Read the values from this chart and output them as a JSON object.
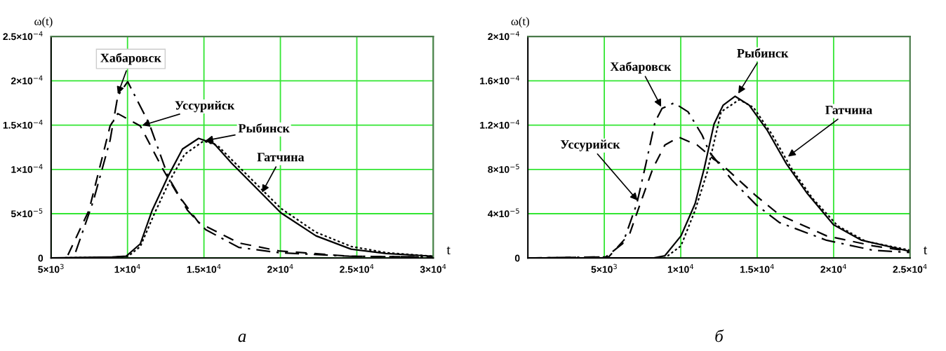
{
  "chart_data": [
    {
      "type": "line",
      "xlabel": "t",
      "ylabel": "ω(t)",
      "xlim": [
        5000,
        30000
      ],
      "ylim": [
        0,
        0.00025
      ],
      "xticks": [
        {
          "value": 5000,
          "label": "5×10$^{3}$"
        },
        {
          "value": 10000,
          "label": "1×10$^{4}$"
        },
        {
          "value": 15000,
          "label": "1.5×10$^{4}$"
        },
        {
          "value": 20000,
          "label": "2×10$^{4}$"
        },
        {
          "value": 25000,
          "label": "2.5×10$^{4}$"
        },
        {
          "value": 30000,
          "label": "3×10$^{4}$"
        }
      ],
      "yticks": [
        0,
        {
          "value": 5e-05,
          "label": "5×10$^{−5}$"
        },
        {
          "value": 0.0001,
          "label": "1×10$^{−4}$"
        },
        {
          "value": 0.00015,
          "label": "1.5×10$^{−4}$"
        },
        {
          "value": 0.0002,
          "label": "2×10$^{−4}$"
        },
        {
          "value": 0.00025,
          "label": "2.5×10$^{−4}$"
        }
      ],
      "grid": true,
      "legend": false,
      "series": [
        {
          "color": "#000000",
          "line_style": "dashdot",
          "x": [
            5000,
            6470,
            7758,
            8861,
            9366,
            10010,
            11434,
            12675,
            13916,
            15111,
            17271,
            19891,
            24487,
            30000
          ],
          "values": [
            0,
            0,
            6.4e-05,
            0.000133,
            0.000183,
            0.000199,
            0.000151,
            9.1e-05,
            5.4e-05,
            3.2e-05,
            1.2e-05,
            6e-06,
            2e-06,
            1e-06
          ]
        },
        {
          "color": "#000000",
          "line_style": "dashed",
          "x": [
            5000,
            6011,
            7482,
            8861,
            9366,
            10837,
            12354,
            13273,
            14652,
            17271,
            19891,
            24487,
            30000
          ],
          "values": [
            0,
            0,
            5.4e-05,
            0.000149,
            0.000163,
            0.000149,
            9.9e-05,
            7.2e-05,
            4e-05,
            1.7e-05,
            8e-06,
            2e-06,
            1e-06
          ]
        },
        {
          "color": "#000000",
          "line_style": "solid",
          "x": [
            5000,
            8999,
            9918,
            10837,
            11618,
            12675,
            13594,
            14652,
            15663,
            16812,
            20029,
            22327,
            24625,
            26923,
            30000
          ],
          "values": [
            0,
            1e-06,
            2e-06,
            1.6e-05,
            5.4e-05,
            9.3e-05,
            0.000123,
            0.000135,
            0.000129,
            0.000107,
            5.1e-05,
            2.5e-05,
            1e-05,
            5e-06,
            2e-06
          ]
        },
        {
          "color": "#000000",
          "line_style": "dotted",
          "x": [
            5000,
            9228,
            10056,
            10837,
            11756,
            12813,
            13732,
            14973,
            15893,
            16812,
            20029,
            22327,
            24625,
            26923,
            30000
          ],
          "values": [
            0,
            1e-06,
            2e-06,
            1.3e-05,
            5e-05,
            8.9e-05,
            0.000117,
            0.000132,
            0.000127,
            0.000111,
            5.6e-05,
            2.9e-05,
            1.3e-05,
            6e-06,
            2e-06
          ]
        }
      ],
      "annotations": [
        {
          "text": "Хабаровск",
          "x": 9320,
          "y": 0.000183
        },
        {
          "text": "Уссурийск",
          "x": 10837,
          "y": 0.000149
        },
        {
          "text": "Рыбинск",
          "x": 14973,
          "y": 0.000132
        },
        {
          "text": "Гатчина",
          "x": 18742,
          "y": 7.2e-05
        },
        "а"
      ]
    },
    {
      "type": "line",
      "xlabel": "t",
      "ylabel": "ω(t)",
      "xlim": [
        0,
        25000
      ],
      "ylim": [
        0,
        0.0002
      ],
      "xticks": [
        {
          "value": 5000,
          "label": "5×10$^{3}$"
        },
        {
          "value": 10000,
          "label": "1×10$^{4}$"
        },
        {
          "value": 15000,
          "label": "1.5×10$^{4}$"
        },
        {
          "value": 20000,
          "label": "2×10$^{4}$"
        },
        {
          "value": 25000,
          "label": "2.5×10$^{4}$"
        }
      ],
      "yticks": [
        0,
        {
          "value": 4e-05,
          "label": "4×10$^{−5}$"
        },
        {
          "value": 8e-05,
          "label": "8×10$^{−5}$"
        },
        {
          "value": 0.00012,
          "label": "1.2×10$^{−4}$"
        },
        {
          "value": 0.00016,
          "label": "1.6×10$^{−4}$"
        },
        {
          "value": 0.0002,
          "label": "2×10$^{−4}$"
        }
      ],
      "grid": true,
      "legend": false,
      "series": [
        {
          "color": "#000000",
          "line_style": "dashdot",
          "x": [
            0,
            5102,
            6205,
            7124,
            7721,
            8319,
            8778,
            9560,
            10479,
            11398,
            11858,
            13374,
            14937,
            16454,
            19533,
            22566,
            25000
          ],
          "values": [
            0,
            1e-06,
            1.3e-05,
            4.9e-05,
            8.5e-05,
            0.000123,
            0.000135,
            0.00014,
            0.000132,
            0.000111,
            9.6e-05,
            7e-05,
            4.8e-05,
            3.2e-05,
            1.6e-05,
            7e-06,
            5e-06
          ]
        },
        {
          "color": "#000000",
          "line_style": "dashed",
          "x": [
            0,
            5285,
            6664,
            7400,
            8181,
            8962,
            9881,
            11076,
            12179,
            12639,
            14937,
            16454,
            19533,
            22566,
            25000
          ],
          "values": [
            0,
            1e-06,
            2.2e-05,
            5.1e-05,
            8.1e-05,
            0.000102,
            0.000109,
            0.000102,
            8.9e-05,
            8.5e-05,
            5.6e-05,
            3.9e-05,
            2e-05,
            1.1e-05,
            6e-06
          ]
        },
        {
          "color": "#000000",
          "line_style": "solid",
          "x": [
            0,
            8181,
            8962,
            10019,
            10938,
            11536,
            12179,
            12777,
            13558,
            14477,
            15672,
            16913,
            18292,
            19993,
            21831,
            25000
          ],
          "values": [
            0,
            0,
            2e-06,
            2e-05,
            4.9e-05,
            8.1e-05,
            0.000121,
            0.000138,
            0.000146,
            0.000138,
            0.000115,
            8.5e-05,
            5.8e-05,
            3e-05,
            1.6e-05,
            6e-06
          ]
        },
        {
          "color": "#000000",
          "line_style": "dotted",
          "x": [
            0,
            8962,
            10019,
            10938,
            11720,
            12639,
            13834,
            14753,
            15994,
            17235,
            18614,
            20269,
            22107,
            25000
          ],
          "values": [
            0,
            0,
            1.1e-05,
            4.3e-05,
            7.7e-05,
            0.000132,
            0.000143,
            0.000136,
            0.000111,
            8.1e-05,
            5.4e-05,
            2.9e-05,
            1.5e-05,
            7e-06
          ]
        }
      ],
      "annotations": [
        {
          "text": "Хабаровск",
          "x": 8778,
          "y": 0.000135
        },
        {
          "text": "Уссурийск",
          "x": 7262,
          "y": 5.06e-05
        },
        {
          "text": "Рыбинск",
          "x": 13696,
          "y": 0.000147
        },
        {
          "text": "Гатчина",
          "x": 16913,
          "y": 9.05e-05
        },
        "б"
      ]
    }
  ]
}
